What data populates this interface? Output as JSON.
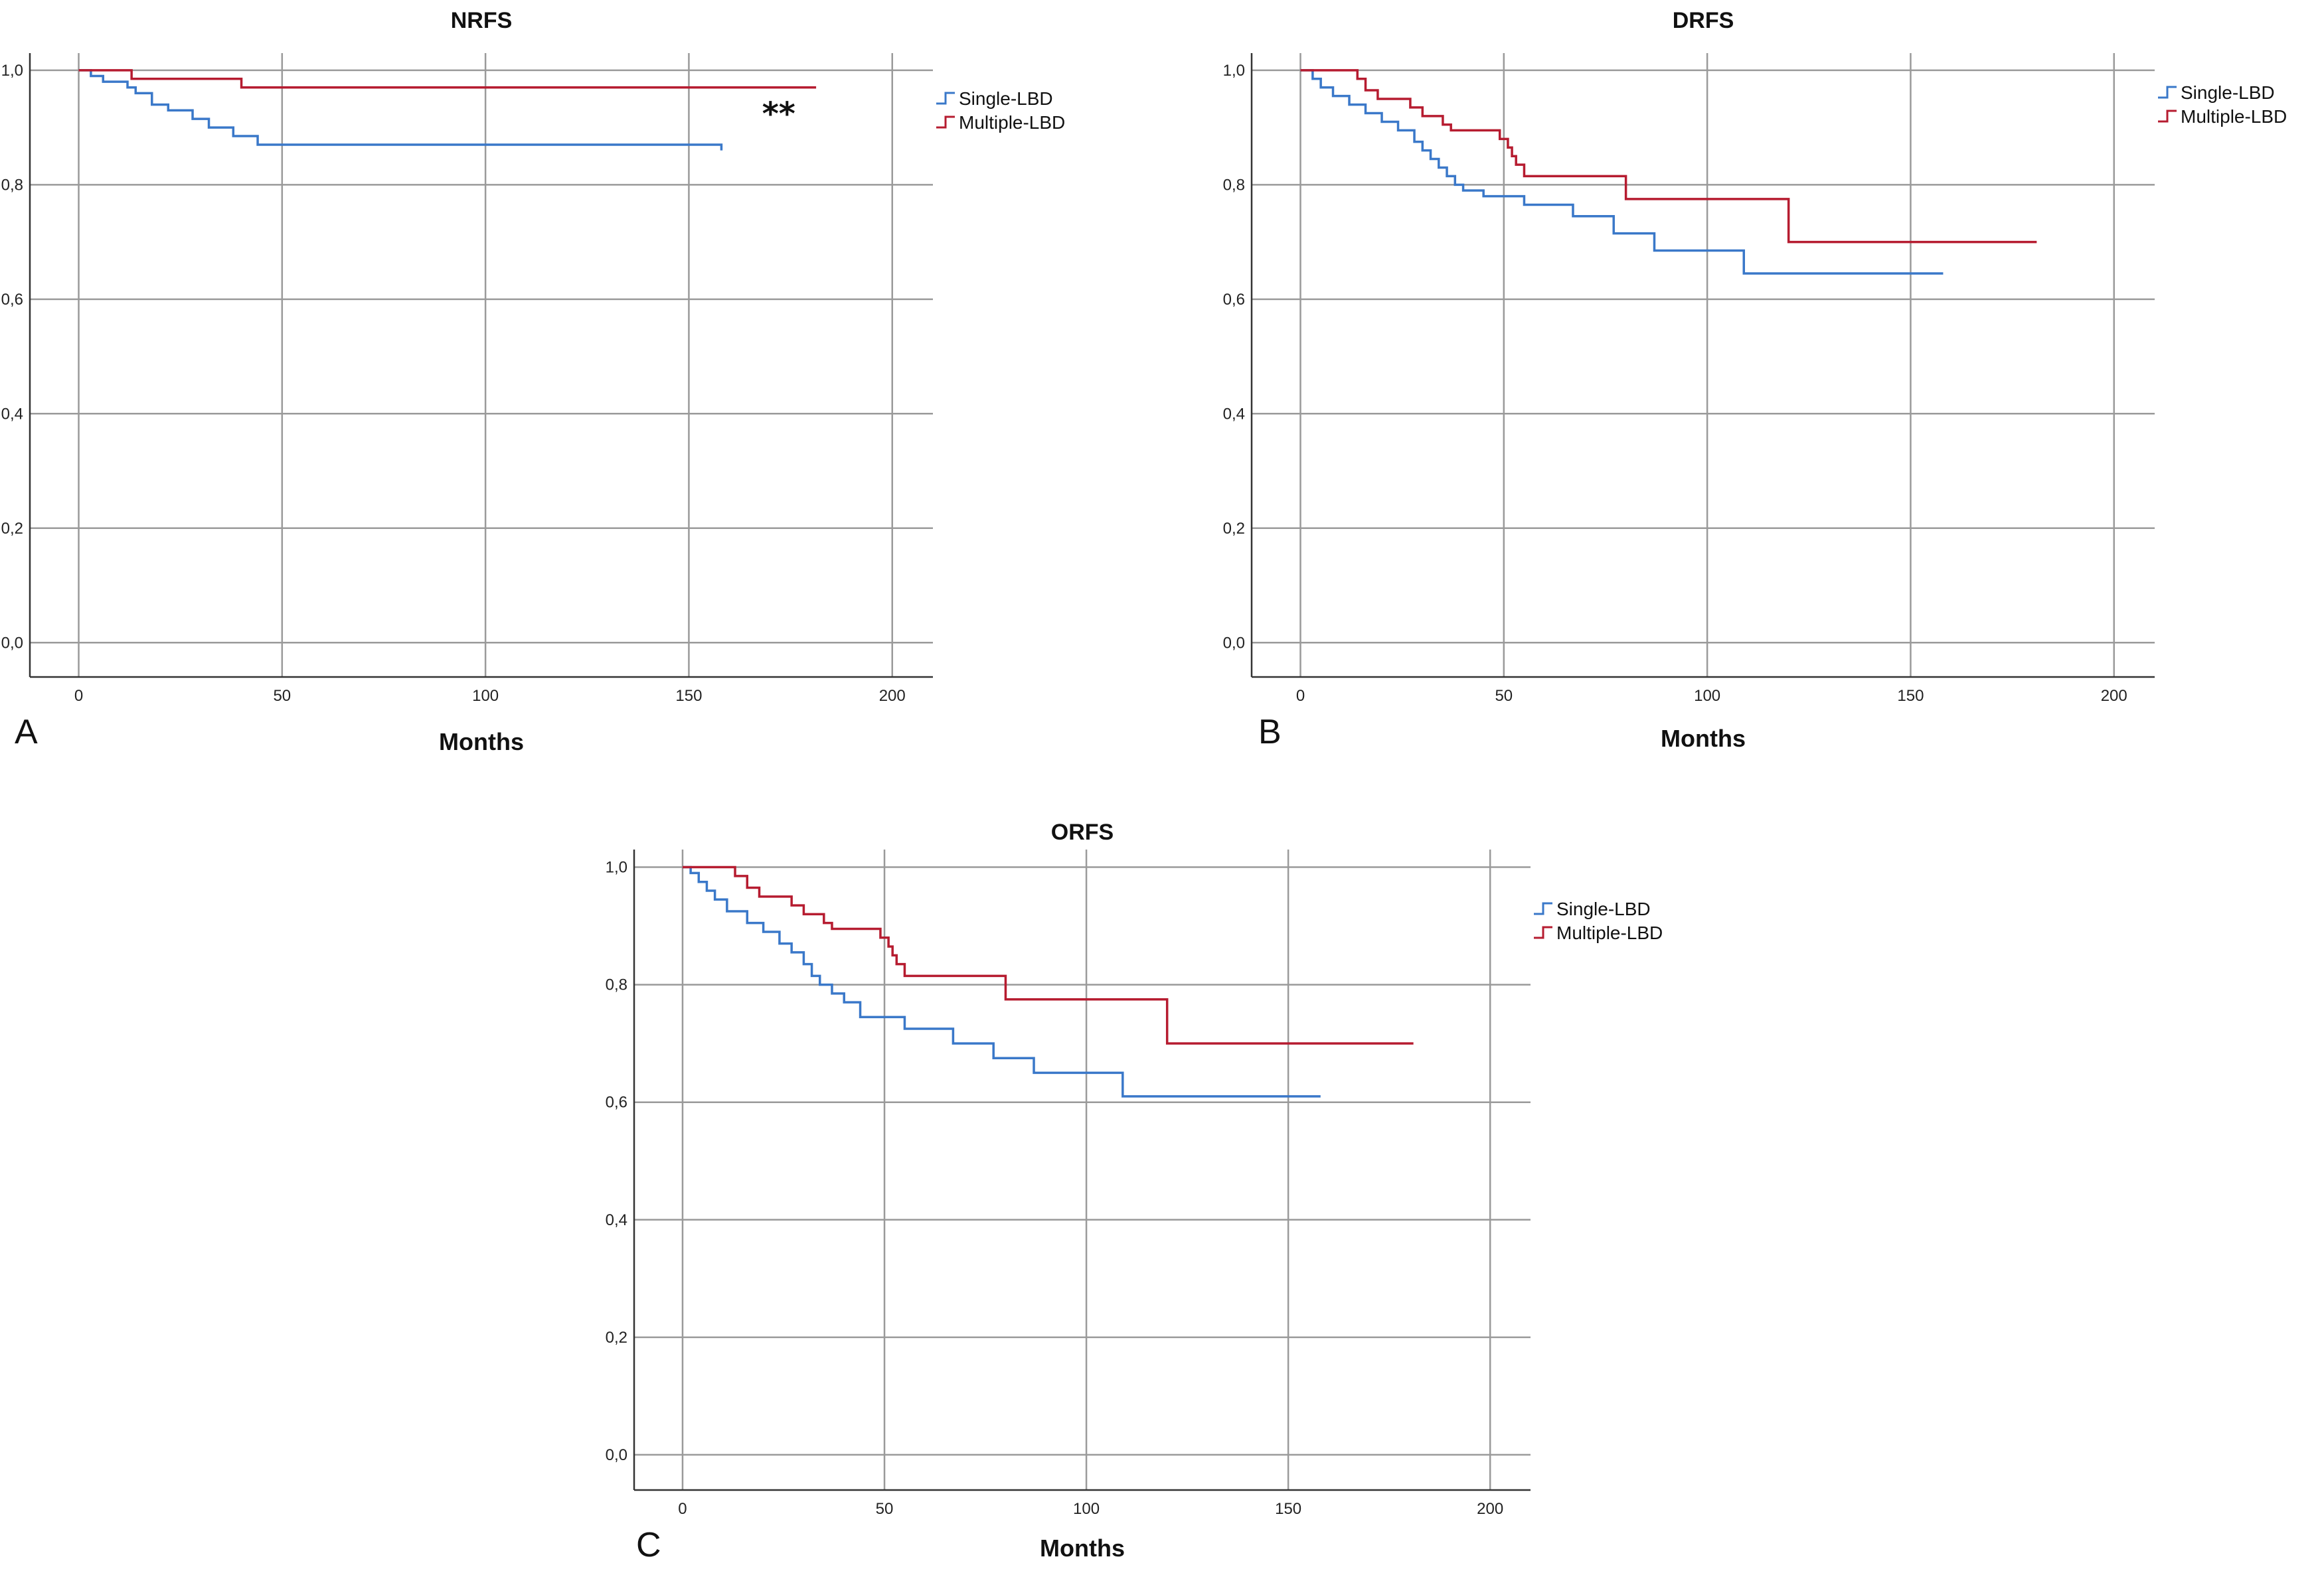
{
  "chart_data": [
    {
      "type": "line",
      "panel": "A",
      "title": "NRFS",
      "xlabel": "Months",
      "ylabel": "",
      "xlim": [
        -12,
        210
      ],
      "ylim": [
        -0.06,
        1.03
      ],
      "xticks": [
        0,
        50,
        100,
        150,
        200
      ],
      "yticks": [
        0.0,
        0.2,
        0.4,
        0.6,
        0.8,
        1.0
      ],
      "ytick_labels": [
        "0,0",
        "0,2",
        "0,4",
        "0,6",
        "0,8",
        "1,0"
      ],
      "grid": true,
      "legend": "right",
      "annotation": "**",
      "annotation_pos": [
        168,
        0.905
      ],
      "series": [
        {
          "name": "Single-LBD",
          "color": "#3a78c9",
          "x": [
            0,
            3,
            6,
            12,
            14,
            18,
            22,
            28,
            32,
            38,
            44,
            158
          ],
          "y": [
            1.0,
            0.99,
            0.98,
            0.97,
            0.96,
            0.94,
            0.93,
            0.915,
            0.9,
            0.885,
            0.87,
            0.86
          ]
        },
        {
          "name": "Multiple-LBD",
          "color": "#b61c30",
          "x": [
            0,
            13,
            40,
            181
          ],
          "y": [
            1.0,
            0.985,
            0.97,
            0.968
          ]
        }
      ]
    },
    {
      "type": "line",
      "panel": "B",
      "title": "DRFS",
      "xlabel": "Months",
      "ylabel": "",
      "xlim": [
        -12,
        210
      ],
      "ylim": [
        -0.06,
        1.03
      ],
      "xticks": [
        0,
        50,
        100,
        150,
        200
      ],
      "yticks": [
        0.0,
        0.2,
        0.4,
        0.6,
        0.8,
        1.0
      ],
      "ytick_labels": [
        "0,0",
        "0,2",
        "0,4",
        "0,6",
        "0,8",
        "1,0"
      ],
      "grid": true,
      "legend": "right",
      "series": [
        {
          "name": "Single-LBD",
          "color": "#3a78c9",
          "x": [
            0,
            3,
            5,
            8,
            12,
            16,
            20,
            24,
            28,
            30,
            32,
            34,
            36,
            38,
            40,
            45,
            55,
            67,
            77,
            87,
            109,
            158
          ],
          "y": [
            1.0,
            0.985,
            0.97,
            0.955,
            0.94,
            0.925,
            0.91,
            0.895,
            0.875,
            0.86,
            0.845,
            0.83,
            0.815,
            0.8,
            0.79,
            0.78,
            0.765,
            0.745,
            0.715,
            0.685,
            0.645,
            0.645
          ]
        },
        {
          "name": "Multiple-LBD",
          "color": "#b61c30",
          "x": [
            0,
            14,
            16,
            19,
            27,
            30,
            35,
            37,
            49,
            51,
            52,
            53,
            55,
            80,
            120,
            181
          ],
          "y": [
            1.0,
            0.985,
            0.965,
            0.95,
            0.935,
            0.92,
            0.905,
            0.895,
            0.88,
            0.865,
            0.85,
            0.835,
            0.815,
            0.775,
            0.7,
            0.7
          ]
        }
      ]
    },
    {
      "type": "line",
      "panel": "C",
      "title": "ORFS",
      "xlabel": "Months",
      "ylabel": "",
      "xlim": [
        -12,
        210
      ],
      "ylim": [
        -0.06,
        1.03
      ],
      "xticks": [
        0,
        50,
        100,
        150,
        200
      ],
      "yticks": [
        0.0,
        0.2,
        0.4,
        0.6,
        0.8,
        1.0
      ],
      "ytick_labels": [
        "0,0",
        "0,2",
        "0,4",
        "0,6",
        "0,8",
        "1,0"
      ],
      "grid": true,
      "legend": "right",
      "series": [
        {
          "name": "Single-LBD",
          "color": "#3a78c9",
          "x": [
            0,
            2,
            4,
            6,
            8,
            11,
            16,
            20,
            24,
            27,
            30,
            32,
            34,
            37,
            40,
            44,
            55,
            67,
            77,
            87,
            109,
            158
          ],
          "y": [
            1.0,
            0.99,
            0.975,
            0.96,
            0.945,
            0.925,
            0.905,
            0.89,
            0.87,
            0.855,
            0.835,
            0.815,
            0.8,
            0.785,
            0.77,
            0.745,
            0.725,
            0.7,
            0.675,
            0.65,
            0.61,
            0.61
          ]
        },
        {
          "name": "Multiple-LBD",
          "color": "#b61c30",
          "x": [
            0,
            13,
            16,
            19,
            27,
            30,
            35,
            37,
            49,
            51,
            52,
            53,
            55,
            80,
            120,
            181
          ],
          "y": [
            1.0,
            0.985,
            0.965,
            0.95,
            0.935,
            0.92,
            0.905,
            0.895,
            0.88,
            0.865,
            0.85,
            0.835,
            0.815,
            0.775,
            0.7,
            0.7
          ]
        }
      ]
    }
  ]
}
